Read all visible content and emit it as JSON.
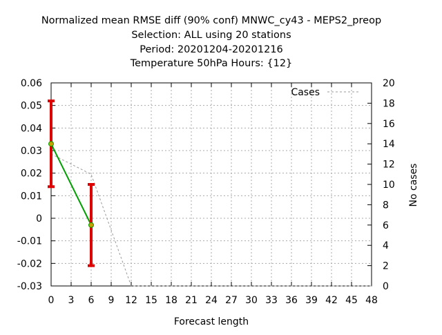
{
  "title_lines": [
    "Normalized mean RMSE diff (90% conf) MNWC_cy43 - MEPS2_preop",
    "Selection: ALL using    20 stations",
    "Period: 20201204-20201216",
    "Temperature 50hPa   Hours: {12}"
  ],
  "chart_data": {
    "type": "line",
    "title": "Normalized mean RMSE diff (90% conf) MNWC_cy43 - MEPS2_preop",
    "xlabel": "Forecast length",
    "ylabel": "",
    "y2label": "No cases",
    "xlim": [
      0,
      48
    ],
    "ylim": [
      -0.03,
      0.06
    ],
    "y2lim": [
      0,
      20
    ],
    "x_ticks": [
      0,
      3,
      6,
      9,
      12,
      15,
      18,
      21,
      24,
      27,
      30,
      33,
      36,
      39,
      42,
      45,
      48
    ],
    "y_ticks": [
      "0.06",
      "0.05",
      "0.04",
      "0.03",
      "0.02",
      "0.01",
      "0",
      "-0.01",
      "-0.02",
      "-0.03"
    ],
    "y2_ticks": [
      "20",
      "18",
      "16",
      "14",
      "12",
      "10",
      "8",
      "6",
      "4",
      "2",
      "0"
    ],
    "grid": true,
    "legend": {
      "placement": "top-right",
      "entries": [
        "Cases"
      ]
    },
    "series": [
      {
        "kind": "mean_diff",
        "x": [
          0,
          6
        ],
        "y": [
          0.033,
          -0.003
        ],
        "ci_low": [
          0.014,
          -0.021
        ],
        "ci_high": [
          0.052,
          0.015
        ],
        "line_color": "#00a000",
        "errorbar_color": "#dd0000",
        "marker_color": "#c8a000"
      },
      {
        "name": "Cases",
        "axis": "y2",
        "x": [
          0,
          6,
          12,
          48
        ],
        "y": [
          13,
          11,
          0,
          0
        ],
        "color": "#999999",
        "dashed": true
      }
    ]
  }
}
